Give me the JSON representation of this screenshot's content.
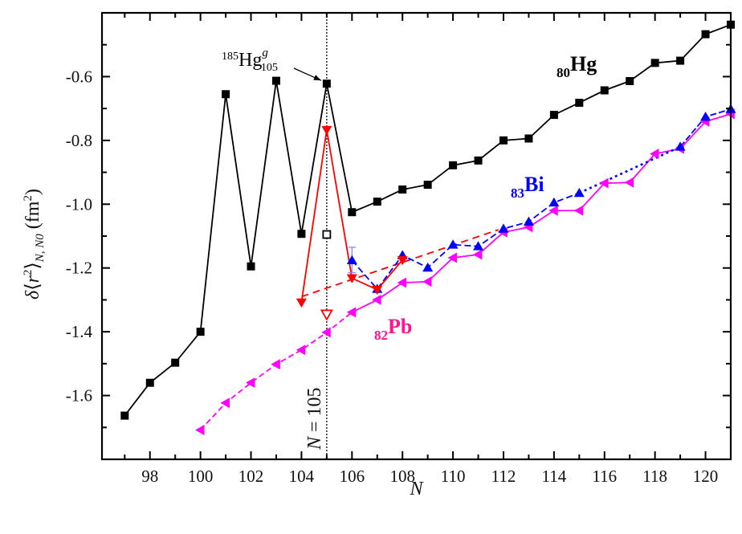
{
  "chart_data": {
    "type": "line",
    "title": "",
    "xlabel": "N",
    "ylabel": "δ⟨r²⟩N, N0 (fm²)",
    "ylabel_parts": {
      "delta": "δ",
      "left": "⟨",
      "r": "r",
      "r_sup": "2",
      "right": "⟩",
      "sub": "N, N0",
      "unit_open": " (fm",
      "unit_sup": "2",
      "unit_close": ")"
    },
    "xlim": [
      96.1,
      121
    ],
    "ylim": [
      -1.8,
      -0.4
    ],
    "xticks": [
      98,
      100,
      102,
      104,
      106,
      108,
      110,
      112,
      114,
      116,
      118,
      120
    ],
    "xtick_labels": [
      "98",
      "100",
      "102",
      "104",
      "106",
      "108",
      "110",
      "112",
      "114",
      "116",
      "118",
      "120"
    ],
    "yticks": [
      -1.6,
      -1.4,
      -1.2,
      -1.0,
      -0.8,
      -0.6
    ],
    "ytick_labels": [
      "-1.6",
      "-1.4",
      "-1.2",
      "-1.0",
      "-0.8",
      "-0.6"
    ],
    "grid": false,
    "series": [
      {
        "name": "80Hg",
        "label_sub": "80",
        "label_main": "Hg",
        "color": "#000000",
        "marker": "square",
        "line": "solid",
        "x": [
          97,
          98,
          99,
          100,
          101,
          102,
          103,
          104,
          105,
          106,
          107,
          108,
          109,
          110,
          111,
          112,
          113,
          114,
          115,
          116,
          117,
          118,
          119,
          120,
          121
        ],
        "y": [
          -1.663,
          -1.56,
          -1.497,
          -1.4,
          -0.655,
          -1.195,
          -0.613,
          -1.093,
          -0.622,
          -1.025,
          -0.992,
          -0.954,
          -0.939,
          -0.878,
          -0.863,
          -0.8,
          -0.794,
          -0.72,
          -0.682,
          -0.643,
          -0.614,
          -0.557,
          -0.55,
          -0.467,
          -0.437
        ]
      },
      {
        "name": "82Pb",
        "label_sub": "82",
        "label_main": "Pb",
        "color": "#FF00FF",
        "label_color": "#FF1493",
        "marker": "triangle-left",
        "line": "dash-then-solid",
        "x": [
          100,
          101,
          102,
          103,
          104,
          105,
          106,
          107,
          108,
          109,
          110,
          111,
          112,
          113,
          114,
          115,
          116,
          117,
          118,
          119,
          120,
          121
        ],
        "y": [
          -1.708,
          -1.623,
          -1.56,
          -1.502,
          -1.457,
          -1.402,
          -1.339,
          -1.3,
          -1.246,
          -1.243,
          -1.168,
          -1.158,
          -1.088,
          -1.072,
          -1.02,
          -1.02,
          -0.934,
          -0.932,
          -0.842,
          -0.826,
          -0.741,
          -0.717
        ]
      },
      {
        "name": "83Bi",
        "label_sub": "83",
        "label_main": "Bi",
        "color": "#0000FF",
        "marker": "triangle-up",
        "line": "dash",
        "x": [
          106,
          107,
          108,
          109,
          110,
          111,
          112,
          113,
          114,
          115,
          119,
          120,
          121
        ],
        "y": [
          -1.176,
          -1.266,
          -1.16,
          -1.199,
          -1.127,
          -1.132,
          -1.077,
          -1.055,
          -0.995,
          -0.965,
          -0.82,
          -0.726,
          -0.702
        ],
        "error_bar": {
          "x": 106,
          "low": -1.215,
          "high": -1.135
        }
      },
      {
        "name": "Hg (isomer / alternative)",
        "color": "#FF0000",
        "marker": "triangle-down",
        "line": "solid",
        "x": [
          104,
          105,
          106,
          107,
          108
        ],
        "y": [
          -1.308,
          -0.767,
          -1.232,
          -1.268,
          -1.175
        ]
      },
      {
        "name": "Red trend (dashed)",
        "color": "#FF0000",
        "marker": "none",
        "line": "dash",
        "x": [
          104,
          111.8
        ],
        "y": [
          -1.29,
          -1.08
        ]
      },
      {
        "name": "Open square N=105",
        "color": "#000000",
        "marker": "square-open",
        "x": [
          105
        ],
        "y": [
          -1.095
        ]
      },
      {
        "name": "Open triangle N=105",
        "color": "#FF0000",
        "marker": "triangle-down-open",
        "x": [
          105
        ],
        "y": [
          -1.345
        ]
      }
    ],
    "vline": {
      "x": 105,
      "style": "dotted",
      "label": "N = 105",
      "label_italic": "N",
      "label_rest": " = 105"
    },
    "annotations": [
      {
        "text_mass": "185",
        "text_main": "Hg",
        "text_sup": "g",
        "text_sub": "105",
        "points_to": {
          "x": 105,
          "y": -0.622
        }
      }
    ]
  }
}
